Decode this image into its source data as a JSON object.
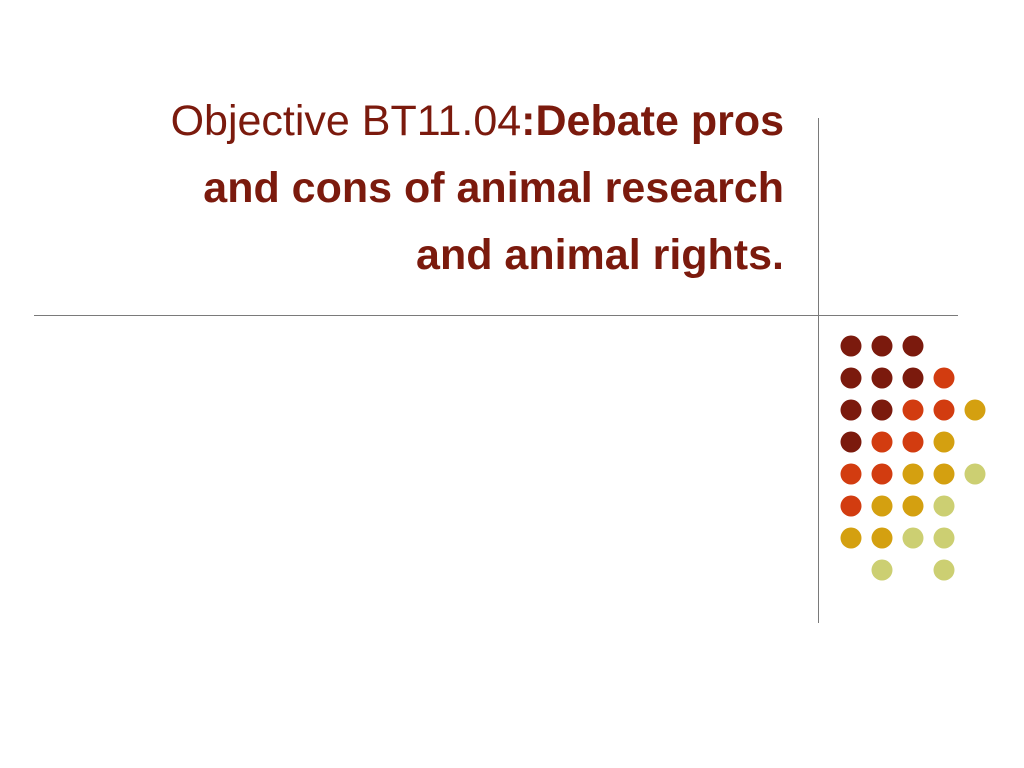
{
  "slide": {
    "title_prefix": "Objective BT11.04",
    "title_colon": ":",
    "title_bold_line1": "Debate pros",
    "title_bold_line2": "and cons of animal research",
    "title_bold_line3": "and animal rights",
    "title_period": "."
  },
  "colors": {
    "title": "#7b1a0d",
    "rules": "#7a7a7a",
    "dot_palette": {
      "maroon": "#7b1a0d",
      "orange": "#d23c10",
      "gold": "#d4a010",
      "khaki": "#cccf72"
    }
  },
  "decoration": {
    "dot_grid": [
      [
        "maroon",
        "maroon",
        "maroon",
        null,
        null
      ],
      [
        "maroon",
        "maroon",
        "maroon",
        "orange",
        null
      ],
      [
        "maroon",
        "maroon",
        "orange",
        "orange",
        "gold"
      ],
      [
        "maroon",
        "orange",
        "orange",
        "gold",
        null
      ],
      [
        "orange",
        "orange",
        "gold",
        "gold",
        "khaki"
      ],
      [
        "orange",
        "gold",
        "gold",
        "khaki",
        null
      ],
      [
        "gold",
        "gold",
        "khaki",
        "khaki",
        null
      ],
      [
        null,
        "khaki",
        null,
        "khaki",
        null
      ]
    ]
  }
}
